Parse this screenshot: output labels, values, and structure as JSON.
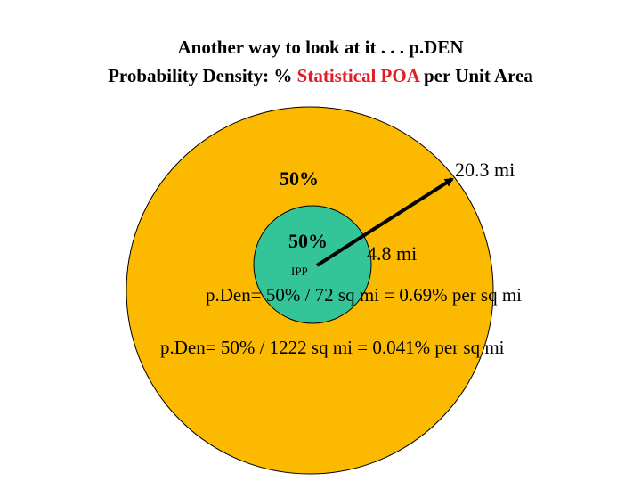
{
  "title": {
    "line1": "Another way to look at it . . . p.DEN",
    "line2_prefix": "Probability Density: % ",
    "line2_accent": "Statistical POA",
    "line2_suffix": " per Unit Area"
  },
  "colors": {
    "outer_circle": "#fbb900",
    "inner_circle": "#33c597",
    "accent_text": "#e31b23",
    "arrow": "#000000"
  },
  "outer_circle": {
    "percent_label": "50%",
    "radius_label": "20.3 mi"
  },
  "inner_circle": {
    "percent_label": "50%",
    "center_label": "IPP",
    "radius_label": "4.8 mi"
  },
  "formulas": {
    "inner": "p.Den= 50% / 72 sq mi = 0.69% per sq mi",
    "outer": "p.Den= 50% / 1222 sq mi = 0.041% per sq mi"
  }
}
